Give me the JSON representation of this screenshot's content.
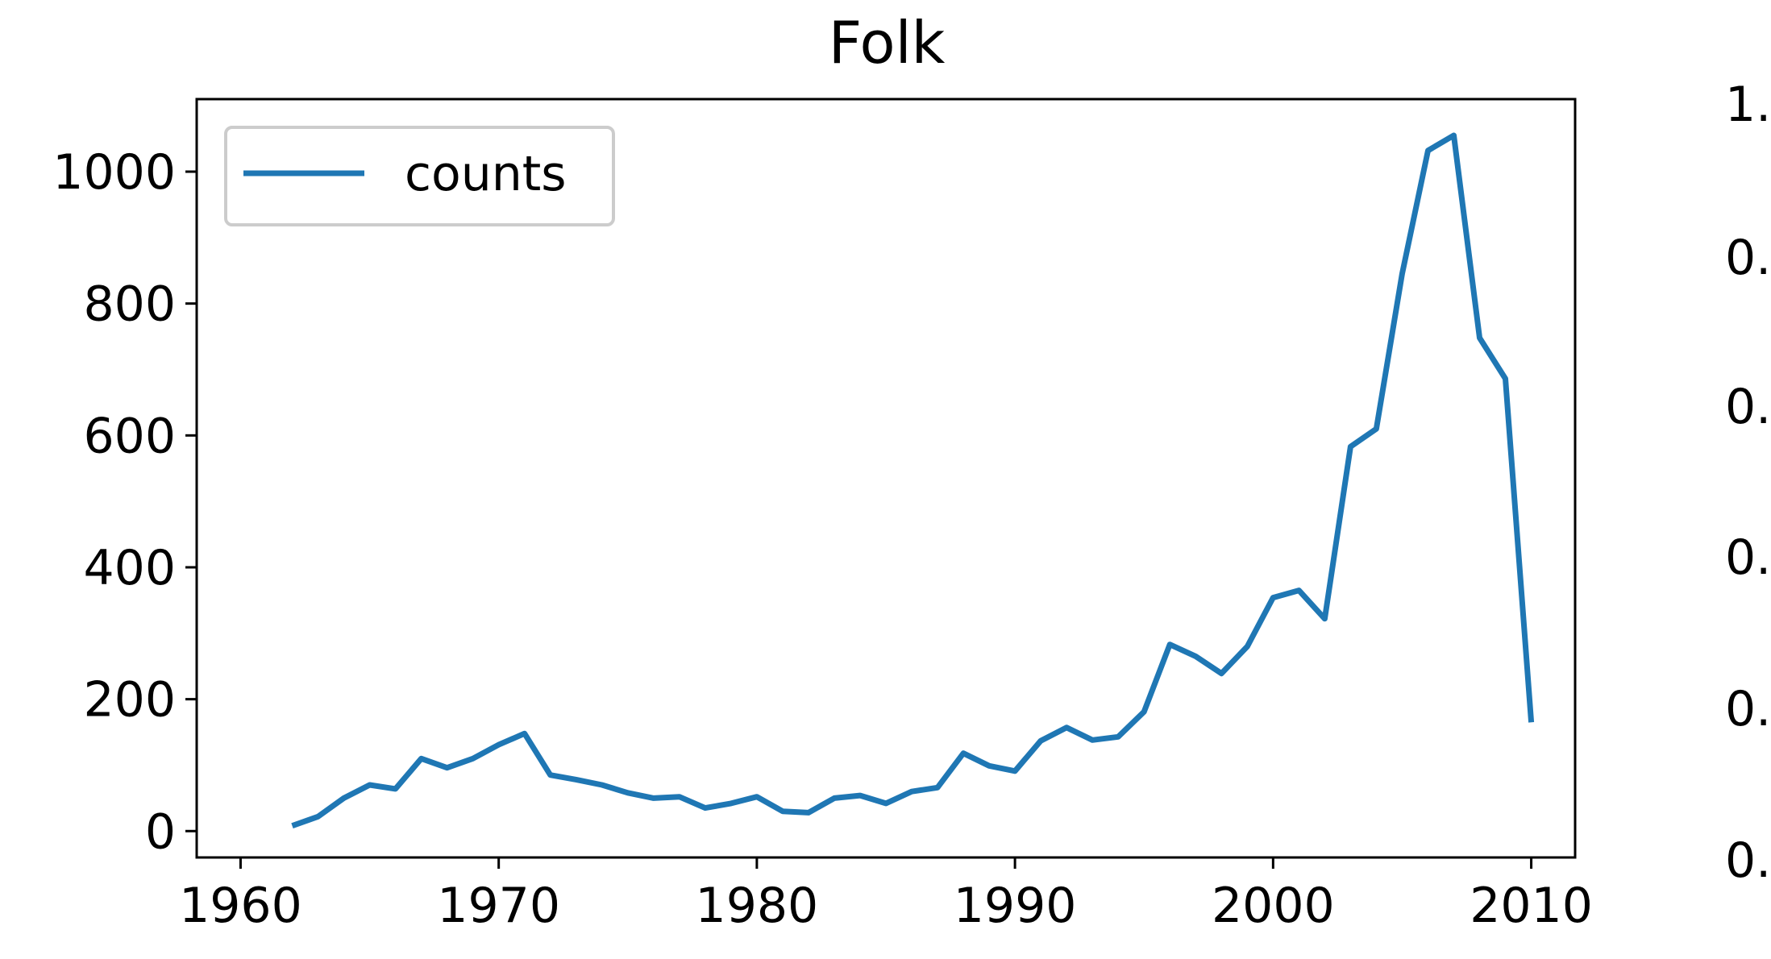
{
  "chart_data": [
    {
      "type": "line",
      "title": "Folk",
      "xlabel": "",
      "ylabel": "",
      "xlim": [
        1958.3,
        2011.7
      ],
      "ylim": [
        -40,
        1110
      ],
      "xticks": [
        1960,
        1970,
        1980,
        1990,
        2000,
        2010
      ],
      "yticks": [
        0,
        200,
        400,
        600,
        800,
        1000
      ],
      "legend": "top-left",
      "series": [
        {
          "name": "counts",
          "color": "#1f77b4",
          "x": [
            1962,
            1963,
            1964,
            1965,
            1966,
            1967,
            1968,
            1969,
            1970,
            1971,
            1972,
            1973,
            1974,
            1975,
            1976,
            1977,
            1978,
            1979,
            1980,
            1981,
            1982,
            1983,
            1984,
            1985,
            1986,
            1987,
            1988,
            1989,
            1990,
            1991,
            1992,
            1993,
            1994,
            1995,
            1996,
            1997,
            1998,
            1999,
            2000,
            2001,
            2002,
            2003,
            2004,
            2005,
            2006,
            2007,
            2008,
            2009,
            2010
          ],
          "y": [
            8,
            22,
            50,
            70,
            64,
            110,
            96,
            110,
            131,
            148,
            85,
            78,
            70,
            58,
            50,
            52,
            35,
            42,
            52,
            30,
            28,
            50,
            54,
            42,
            60,
            66,
            118,
            99,
            91,
            137,
            157,
            138,
            143,
            181,
            283,
            265,
            239,
            280,
            354,
            365,
            322,
            583,
            610,
            845,
            1032,
            1055,
            748,
            686,
            165
          ]
        }
      ]
    },
    {
      "type": "line",
      "title": "",
      "ytick_labels_partial": [
        "1.",
        "0.",
        "0.",
        "0.",
        "0.",
        "0."
      ]
    }
  ]
}
